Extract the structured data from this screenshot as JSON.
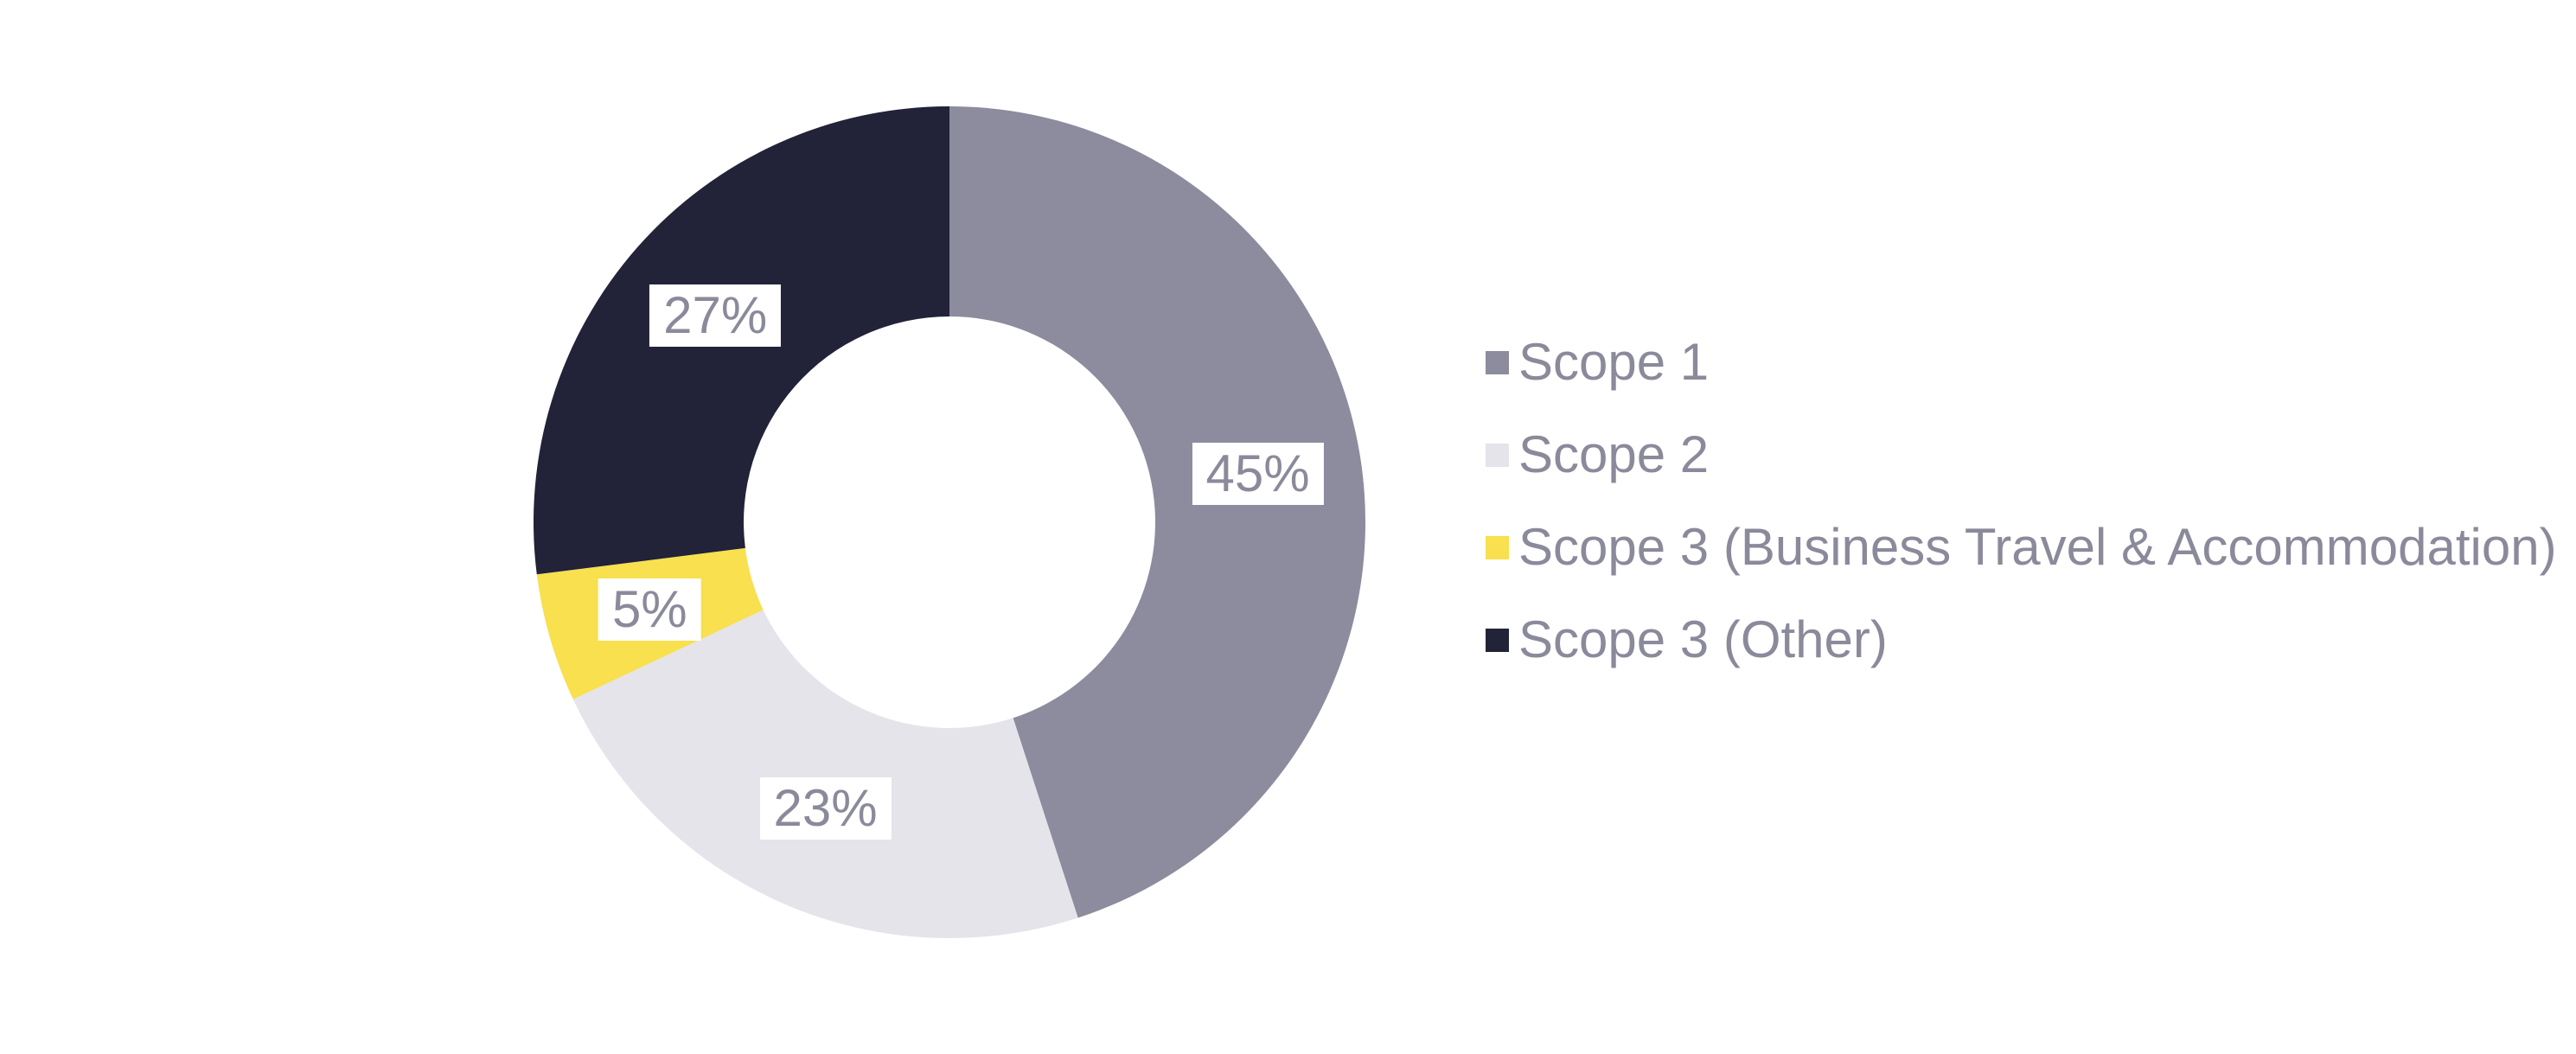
{
  "chart_data": {
    "type": "pie",
    "variant": "donut",
    "background": "#FFFFFF",
    "direction": "clockwise",
    "start_angle_deg": 0,
    "legend_position": "right",
    "label_text_color": "#8A8A9B",
    "label_bg_color": "#FFFFFF",
    "segments": [
      {
        "label": "Scope 1",
        "value": 45,
        "display": "45%",
        "color": "#8C8C9E"
      },
      {
        "label": "Scope 2",
        "value": 23,
        "display": "23%",
        "color": "#E4E4EA"
      },
      {
        "label": "Scope 3 (Business Travel & Accommodation)",
        "value": 5,
        "display": "5%",
        "color": "#F8E04E"
      },
      {
        "label": "Scope 3 (Other)",
        "value": 27,
        "display": "27%",
        "color": "#222238"
      }
    ]
  }
}
